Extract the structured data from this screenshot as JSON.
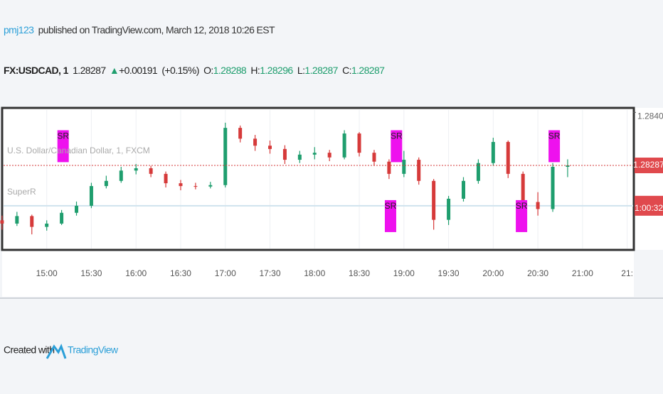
{
  "header": {
    "author": "pmj123",
    "published": "published on TradingView.com, March 12, 2018 10:26 EST"
  },
  "ticker": {
    "symbol": "FX:USDCAD, 1",
    "last": "1.28287",
    "change": "+0.00191",
    "change_pct": "(+0.15%)",
    "o_label": "O:",
    "o": "1.28288",
    "h_label": "H:",
    "h": "1.28296",
    "l_label": "L:",
    "l": "1.28287",
    "c_label": "C:",
    "c": "1.28287"
  },
  "footer": {
    "created": "Created with",
    "brand": "TradingView"
  },
  "chart_data": {
    "type": "candlestick",
    "legend": [
      "U.S. Dollar/Canadian Dollar, 1, FXCM",
      "SuperR"
    ],
    "x": [
      870,
      880,
      890,
      900,
      910,
      920,
      930,
      940,
      950,
      960,
      970,
      980,
      990,
      1000,
      1010,
      1020,
      1030,
      1040,
      1050,
      1060,
      1070,
      1080,
      1090,
      1100,
      1110,
      1120,
      1130,
      1140,
      1150,
      1160,
      1170,
      1180,
      1190,
      1200,
      1210,
      1220,
      1230,
      1240,
      1250
    ],
    "candles": [
      [
        1.2817,
        1.2818,
        1.2815,
        1.28163
      ],
      [
        1.28163,
        1.28188,
        1.28158,
        1.28179
      ],
      [
        1.28179,
        1.28182,
        1.2814,
        1.28156
      ],
      [
        1.28156,
        1.2817,
        1.28148,
        1.28163
      ],
      [
        1.28163,
        1.28192,
        1.2816,
        1.28186
      ],
      [
        1.28186,
        1.2821,
        1.2818,
        1.28201
      ],
      [
        1.28201,
        1.2825,
        1.28196,
        1.28243
      ],
      [
        1.28243,
        1.28265,
        1.28238,
        1.28254
      ],
      [
        1.28254,
        1.28284,
        1.2825,
        1.28276
      ],
      [
        1.28276,
        1.2829,
        1.28268,
        1.28281
      ],
      [
        1.28281,
        1.28286,
        1.28262,
        1.28269
      ],
      [
        1.28269,
        1.28274,
        1.2824,
        1.28249
      ],
      [
        1.28249,
        1.28256,
        1.28234,
        1.28243
      ],
      [
        1.28243,
        1.2825,
        1.28236,
        1.28242
      ],
      [
        1.28242,
        1.28252,
        1.28238,
        1.28245
      ],
      [
        1.28245,
        1.28378,
        1.2824,
        1.28367
      ],
      [
        1.28367,
        1.28372,
        1.28336,
        1.28344
      ],
      [
        1.28344,
        1.28352,
        1.28318,
        1.28329
      ],
      [
        1.28329,
        1.2834,
        1.28312,
        1.28322
      ],
      [
        1.28322,
        1.2833,
        1.2829,
        1.28299
      ],
      [
        1.28299,
        1.28318,
        1.28292,
        1.2831
      ],
      [
        1.2831,
        1.28326,
        1.283,
        1.28314
      ],
      [
        1.28314,
        1.2832,
        1.28296,
        1.28304
      ],
      [
        1.28304,
        1.28362,
        1.283,
        1.28355
      ],
      [
        1.28355,
        1.28358,
        1.28306,
        1.28314
      ],
      [
        1.28314,
        1.2832,
        1.28286,
        1.28295
      ],
      [
        1.28295,
        1.283,
        1.28258,
        1.28269
      ],
      [
        1.28269,
        1.28318,
        1.28262,
        1.28299
      ],
      [
        1.28299,
        1.28304,
        1.28246,
        1.28254
      ],
      [
        1.28254,
        1.28258,
        1.2815,
        1.28171
      ],
      [
        1.28171,
        1.28222,
        1.2816,
        1.28216
      ],
      [
        1.28216,
        1.28262,
        1.2821,
        1.28254
      ],
      [
        1.28254,
        1.283,
        1.28248,
        1.28292
      ],
      [
        1.28292,
        1.28346,
        1.28286,
        1.28337
      ],
      [
        1.28337,
        1.2834,
        1.2826,
        1.28269
      ],
      [
        1.28269,
        1.28274,
        1.2819,
        1.28209
      ],
      [
        1.28209,
        1.2823,
        1.2818,
        1.28194
      ],
      [
        1.28194,
        1.28292,
        1.28188,
        1.28284
      ],
      [
        1.28284,
        1.283,
        1.28262,
        1.28287
      ]
    ],
    "up_color": "#1f9e6e",
    "down_color": "#d63a3a",
    "xlim": [
      871,
      1294
    ],
    "ylim": [
      1.2811,
      1.28405
    ],
    "xticks": [
      {
        "value": 900,
        "label": "15:00"
      },
      {
        "value": 930,
        "label": "15:30"
      },
      {
        "value": 960,
        "label": "16:00"
      },
      {
        "value": 990,
        "label": "16:30"
      },
      {
        "value": 1020,
        "label": "17:00"
      },
      {
        "value": 1050,
        "label": "17:30"
      },
      {
        "value": 1080,
        "label": "18:00"
      },
      {
        "value": 1110,
        "label": "18:30"
      },
      {
        "value": 1140,
        "label": "19:00"
      },
      {
        "value": 1170,
        "label": "19:30"
      },
      {
        "value": 1200,
        "label": "20:00"
      },
      {
        "value": 1230,
        "label": "20:30"
      },
      {
        "value": 1260,
        "label": "21:00"
      },
      {
        "value": 1290,
        "label": "21:"
      }
    ],
    "yticks": [
      {
        "value": 1.284,
        "label": "1.28400"
      }
    ],
    "last_price": 1.28287,
    "level_line": 1.28201,
    "countdown": "1:00:32",
    "markers": [
      {
        "label": "SR",
        "x": 911,
        "y": 1.28362
      },
      {
        "label": "SR",
        "x": 1135,
        "y": 1.28362
      },
      {
        "label": "SR",
        "x": 1131,
        "y": 1.28213
      },
      {
        "label": "SR",
        "x": 1219,
        "y": 1.28213
      },
      {
        "label": "SR",
        "x": 1241,
        "y": 1.28362
      }
    ],
    "marker_color": "#ee11ee",
    "grid": true
  }
}
